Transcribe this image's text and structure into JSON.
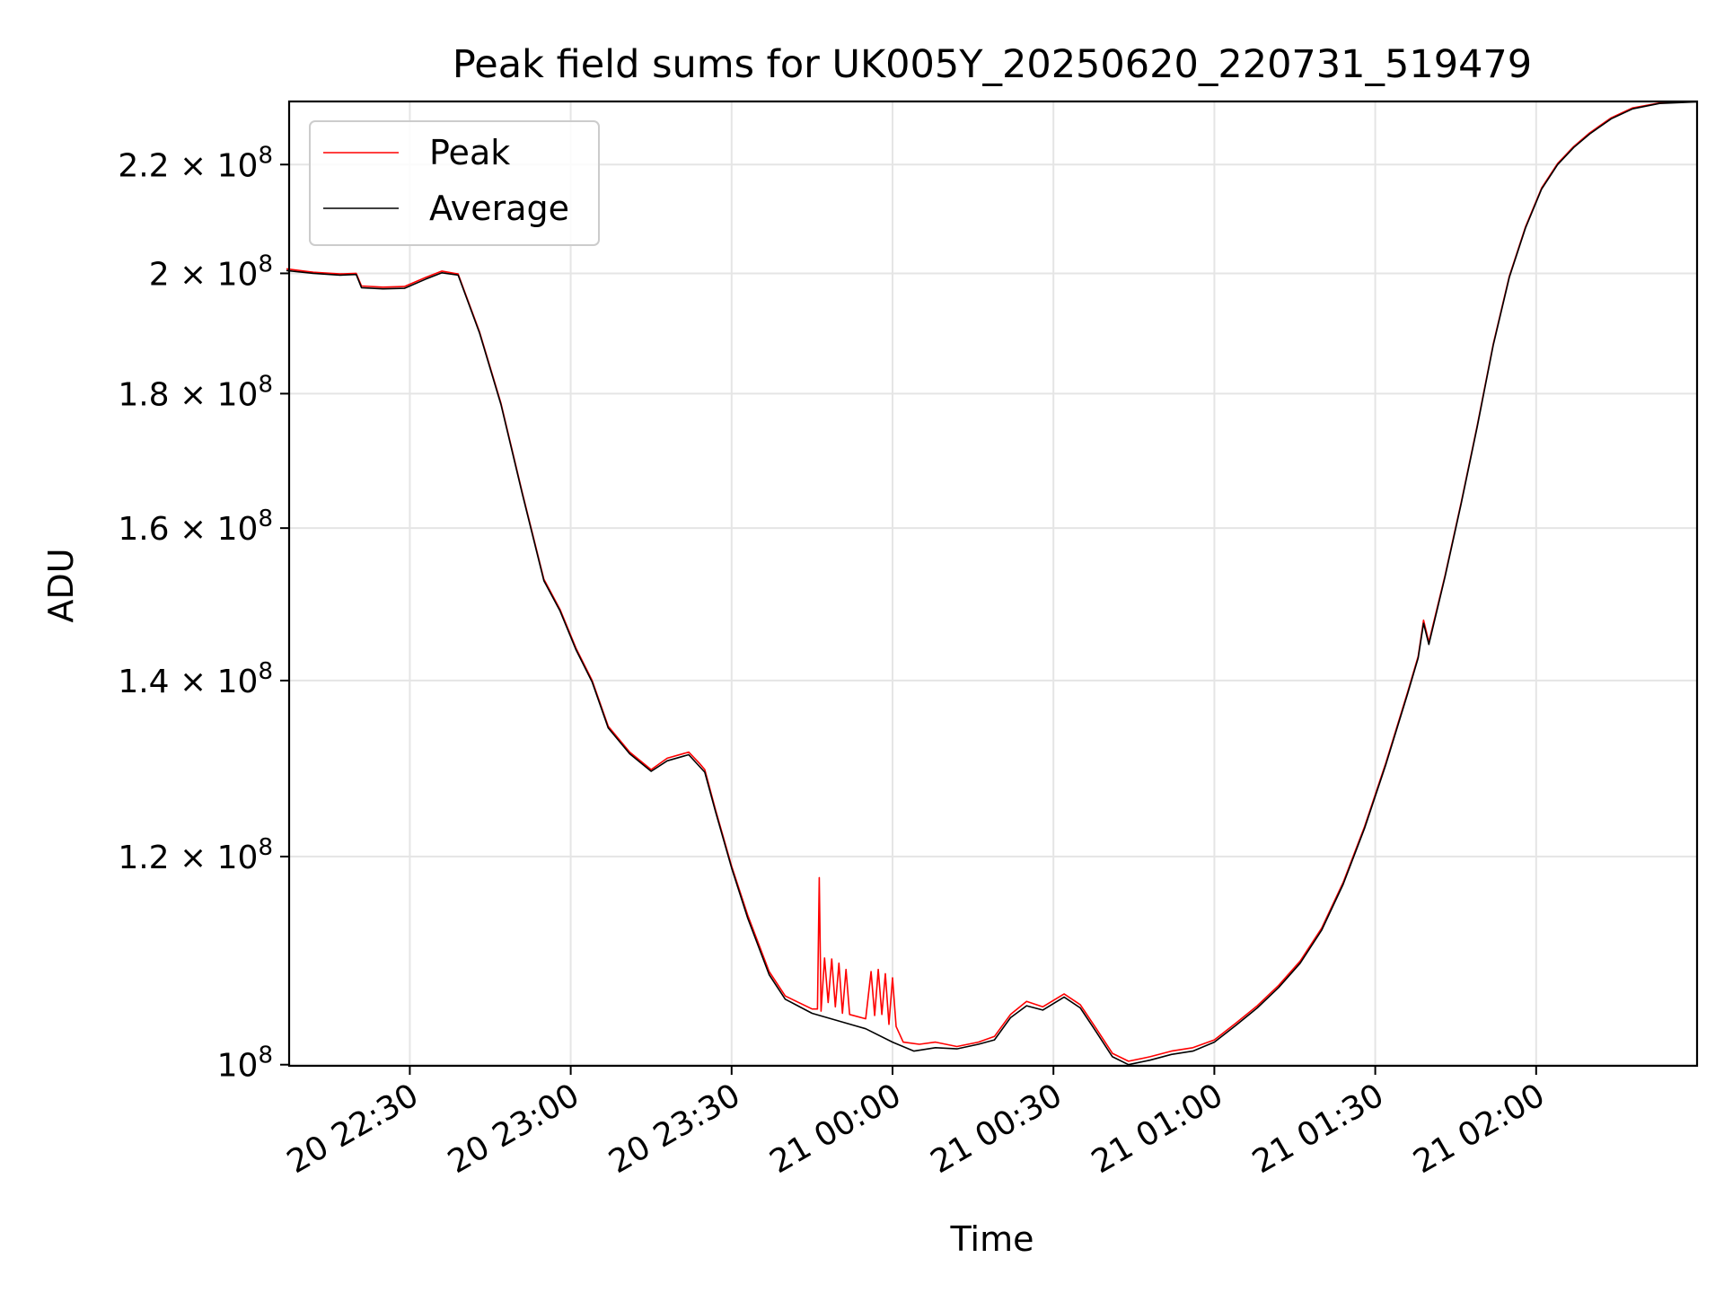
{
  "chart_data": {
    "type": "line",
    "title": "Peak field sums for UK005Y_20250620_220731_519479",
    "xlabel": "Time",
    "ylabel": "ADU",
    "y_scale": "log",
    "grid": true,
    "legend_position": "top-left",
    "xlim": [
      "2025-06-20 22:07:30",
      "2025-06-21 02:30:00"
    ],
    "ylim": [
      99900000,
      232500000
    ],
    "x_ticks": [
      "2025-06-20 22:30",
      "2025-06-20 23:00",
      "2025-06-20 23:30",
      "2025-06-21 00:00",
      "2025-06-21 00:30",
      "2025-06-21 01:00",
      "2025-06-21 01:30",
      "2025-06-21 02:00"
    ],
    "x_tick_labels": [
      "20 22:30",
      "20 23:00",
      "20 23:30",
      "21 00:00",
      "21 00:30",
      "21 01:00",
      "21 01:30",
      "21 02:00"
    ],
    "y_ticks": [
      {
        "value": 100000000,
        "mantissa": "",
        "exp": "8"
      },
      {
        "value": 120000000,
        "mantissa": "1.2",
        "exp": "8"
      },
      {
        "value": 140000000,
        "mantissa": "1.4",
        "exp": "8"
      },
      {
        "value": 160000000,
        "mantissa": "1.6",
        "exp": "8"
      },
      {
        "value": 180000000,
        "mantissa": "1.8",
        "exp": "8"
      },
      {
        "value": 200000000,
        "mantissa": "2",
        "exp": "8"
      },
      {
        "value": 220000000,
        "mantissa": "2.2",
        "exp": "8"
      }
    ],
    "series": [
      {
        "name": "Peak",
        "color": "#ff0000",
        "points": [
          [
            "2025-06-20 22:07",
            200800000
          ],
          [
            "2025-06-20 22:12",
            200200000
          ],
          [
            "2025-06-20 22:17",
            199900000
          ],
          [
            "2025-06-20 22:20",
            200000000
          ],
          [
            "2025-06-20 22:21",
            197800000
          ],
          [
            "2025-06-20 22:25",
            197600000
          ],
          [
            "2025-06-20 22:29",
            197700000
          ],
          [
            "2025-06-20 22:33",
            199300000
          ],
          [
            "2025-06-20 22:36",
            200400000
          ],
          [
            "2025-06-20 22:39",
            199900000
          ],
          [
            "2025-06-20 22:43",
            190000000
          ],
          [
            "2025-06-20 22:47",
            178500000
          ],
          [
            "2025-06-20 22:51",
            165000000
          ],
          [
            "2025-06-20 22:55",
            153000000
          ],
          [
            "2025-06-20 22:58",
            149000000
          ],
          [
            "2025-06-20 23:01",
            144000000
          ],
          [
            "2025-06-20 23:04",
            140000000
          ],
          [
            "2025-06-20 23:07",
            134500000
          ],
          [
            "2025-06-20 23:11",
            131500000
          ],
          [
            "2025-06-20 23:15",
            129500000
          ],
          [
            "2025-06-20 23:18",
            130800000
          ],
          [
            "2025-06-20 23:22",
            131500000
          ],
          [
            "2025-06-20 23:24",
            130200000
          ],
          [
            "2025-06-20 23:25",
            129500000
          ],
          [
            "2025-06-20 23:27",
            125000000
          ],
          [
            "2025-06-20 23:30",
            119000000
          ],
          [
            "2025-06-20 23:33",
            114000000
          ],
          [
            "2025-06-20 23:37",
            108500000
          ],
          [
            "2025-06-20 23:40",
            106200000
          ],
          [
            "2025-06-20 23:45",
            105000000
          ],
          [
            "2025-06-20 23:46",
            105000000
          ],
          [
            "2025-06-20 23:46:20",
            117800000
          ],
          [
            "2025-06-20 23:46:40",
            104800000
          ],
          [
            "2025-06-20 23:47:20",
            109800000
          ],
          [
            "2025-06-20 23:48",
            105600000
          ],
          [
            "2025-06-20 23:48:40",
            109700000
          ],
          [
            "2025-06-20 23:49:20",
            105200000
          ],
          [
            "2025-06-20 23:50",
            109300000
          ],
          [
            "2025-06-20 23:50:40",
            104600000
          ],
          [
            "2025-06-20 23:51:20",
            108700000
          ],
          [
            "2025-06-20 23:52",
            104500000
          ],
          [
            "2025-06-20 23:55",
            104100000
          ],
          [
            "2025-06-20 23:56",
            108500000
          ],
          [
            "2025-06-20 23:56:40",
            104400000
          ],
          [
            "2025-06-20 23:57:20",
            108700000
          ],
          [
            "2025-06-20 23:58",
            104500000
          ],
          [
            "2025-06-20 23:58:40",
            108300000
          ],
          [
            "2025-06-20 23:59:20",
            103600000
          ],
          [
            "2025-06-21 00:00",
            107900000
          ],
          [
            "2025-06-21 00:00:40",
            103400000
          ],
          [
            "2025-06-21 00:02",
            102000000
          ],
          [
            "2025-06-21 00:05",
            101800000
          ],
          [
            "2025-06-21 00:08",
            102000000
          ],
          [
            "2025-06-21 00:12",
            101600000
          ],
          [
            "2025-06-21 00:16",
            102000000
          ],
          [
            "2025-06-21 00:19",
            102500000
          ],
          [
            "2025-06-21 00:22",
            104500000
          ],
          [
            "2025-06-21 00:25",
            105700000
          ],
          [
            "2025-06-21 00:28",
            105200000
          ],
          [
            "2025-06-21 00:32",
            106400000
          ],
          [
            "2025-06-21 00:35",
            105400000
          ],
          [
            "2025-06-21 00:38",
            103200000
          ],
          [
            "2025-06-21 00:41",
            101000000
          ],
          [
            "2025-06-21 00:44",
            100300000
          ],
          [
            "2025-06-21 00:48",
            100700000
          ],
          [
            "2025-06-21 00:52",
            101200000
          ],
          [
            "2025-06-21 00:56",
            101500000
          ],
          [
            "2025-06-21 01:00",
            102200000
          ],
          [
            "2025-06-21 01:04",
            103700000
          ],
          [
            "2025-06-21 01:08",
            105300000
          ],
          [
            "2025-06-21 01:12",
            107200000
          ],
          [
            "2025-06-21 01:16",
            109500000
          ],
          [
            "2025-06-21 01:20",
            112700000
          ],
          [
            "2025-06-21 01:24",
            117300000
          ],
          [
            "2025-06-21 01:28",
            123200000
          ],
          [
            "2025-06-21 01:32",
            130300000
          ],
          [
            "2025-06-21 01:36",
            138500000
          ],
          [
            "2025-06-21 01:38",
            143000000
          ],
          [
            "2025-06-21 01:39",
            147600000
          ],
          [
            "2025-06-21 01:40",
            144800000
          ],
          [
            "2025-06-21 01:43",
            153500000
          ],
          [
            "2025-06-21 01:46",
            163600000
          ],
          [
            "2025-06-21 01:49",
            175000000
          ],
          [
            "2025-06-21 01:52",
            188000000
          ],
          [
            "2025-06-21 01:55",
            199500000
          ],
          [
            "2025-06-21 01:58",
            208300000
          ],
          [
            "2025-06-21 02:01",
            215500000
          ],
          [
            "2025-06-21 02:04",
            220200000
          ],
          [
            "2025-06-21 02:07",
            223500000
          ],
          [
            "2025-06-21 02:10",
            226200000
          ],
          [
            "2025-06-21 02:14",
            229200000
          ],
          [
            "2025-06-21 02:18",
            231200000
          ],
          [
            "2025-06-21 02:23",
            232200000
          ],
          [
            "2025-06-21 02:30",
            232500000
          ]
        ]
      },
      {
        "name": "Average",
        "color": "#000000",
        "points": [
          [
            "2025-06-20 22:07",
            200500000
          ],
          [
            "2025-06-20 22:12",
            200000000
          ],
          [
            "2025-06-20 22:17",
            199700000
          ],
          [
            "2025-06-20 22:20",
            199800000
          ],
          [
            "2025-06-20 22:21",
            197500000
          ],
          [
            "2025-06-20 22:25",
            197300000
          ],
          [
            "2025-06-20 22:29",
            197400000
          ],
          [
            "2025-06-20 22:33",
            199000000
          ],
          [
            "2025-06-20 22:36",
            200100000
          ],
          [
            "2025-06-20 22:39",
            199700000
          ],
          [
            "2025-06-20 22:43",
            189800000
          ],
          [
            "2025-06-20 22:47",
            178300000
          ],
          [
            "2025-06-20 22:51",
            164800000
          ],
          [
            "2025-06-20 22:55",
            152800000
          ],
          [
            "2025-06-20 22:58",
            148800000
          ],
          [
            "2025-06-20 23:01",
            143800000
          ],
          [
            "2025-06-20 23:04",
            139800000
          ],
          [
            "2025-06-20 23:07",
            134300000
          ],
          [
            "2025-06-20 23:11",
            131300000
          ],
          [
            "2025-06-20 23:15",
            129300000
          ],
          [
            "2025-06-20 23:18",
            130500000
          ],
          [
            "2025-06-20 23:22",
            131200000
          ],
          [
            "2025-06-20 23:25",
            129200000
          ],
          [
            "2025-06-20 23:27",
            124800000
          ],
          [
            "2025-06-20 23:30",
            118800000
          ],
          [
            "2025-06-20 23:33",
            113700000
          ],
          [
            "2025-06-20 23:37",
            108200000
          ],
          [
            "2025-06-20 23:40",
            105900000
          ],
          [
            "2025-06-20 23:45",
            104600000
          ],
          [
            "2025-06-20 23:50",
            103900000
          ],
          [
            "2025-06-20 23:55",
            103200000
          ],
          [
            "2025-06-21 00:00",
            102000000
          ],
          [
            "2025-06-21 00:04",
            101200000
          ],
          [
            "2025-06-21 00:08",
            101500000
          ],
          [
            "2025-06-21 00:12",
            101400000
          ],
          [
            "2025-06-21 00:16",
            101800000
          ],
          [
            "2025-06-21 00:19",
            102200000
          ],
          [
            "2025-06-21 00:22",
            104200000
          ],
          [
            "2025-06-21 00:25",
            105300000
          ],
          [
            "2025-06-21 00:28",
            104900000
          ],
          [
            "2025-06-21 00:32",
            106100000
          ],
          [
            "2025-06-21 00:35",
            105100000
          ],
          [
            "2025-06-21 00:38",
            102900000
          ],
          [
            "2025-06-21 00:41",
            100700000
          ],
          [
            "2025-06-21 00:44",
            100000000
          ],
          [
            "2025-06-21 00:48",
            100400000
          ],
          [
            "2025-06-21 00:52",
            100900000
          ],
          [
            "2025-06-21 00:56",
            101200000
          ],
          [
            "2025-06-21 01:00",
            102000000
          ],
          [
            "2025-06-21 01:04",
            103500000
          ],
          [
            "2025-06-21 01:08",
            105100000
          ],
          [
            "2025-06-21 01:12",
            107000000
          ],
          [
            "2025-06-21 01:16",
            109300000
          ],
          [
            "2025-06-21 01:20",
            112500000
          ],
          [
            "2025-06-21 01:24",
            117100000
          ],
          [
            "2025-06-21 01:28",
            123000000
          ],
          [
            "2025-06-21 01:32",
            130100000
          ],
          [
            "2025-06-21 01:36",
            138300000
          ],
          [
            "2025-06-21 01:38",
            142800000
          ],
          [
            "2025-06-21 01:39",
            147200000
          ],
          [
            "2025-06-21 01:40",
            144500000
          ],
          [
            "2025-06-21 01:43",
            153300000
          ],
          [
            "2025-06-21 01:46",
            163400000
          ],
          [
            "2025-06-21 01:49",
            174800000
          ],
          [
            "2025-06-21 01:52",
            187800000
          ],
          [
            "2025-06-21 01:55",
            199300000
          ],
          [
            "2025-06-21 01:58",
            208100000
          ],
          [
            "2025-06-21 02:01",
            215300000
          ],
          [
            "2025-06-21 02:04",
            220000000
          ],
          [
            "2025-06-21 02:07",
            223300000
          ],
          [
            "2025-06-21 02:10",
            226000000
          ],
          [
            "2025-06-21 02:14",
            229000000
          ],
          [
            "2025-06-21 02:18",
            231000000
          ],
          [
            "2025-06-21 02:23",
            232100000
          ],
          [
            "2025-06-21 02:30",
            232400000
          ]
        ]
      }
    ]
  }
}
